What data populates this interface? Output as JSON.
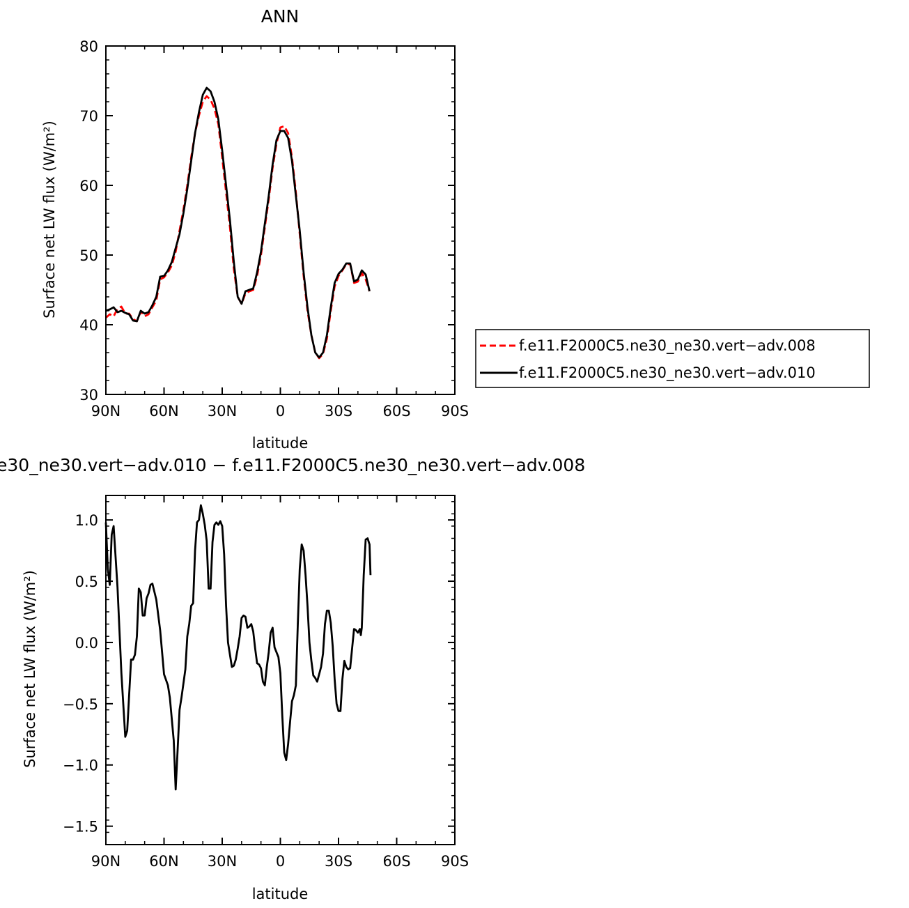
{
  "chart_data": [
    {
      "type": "line",
      "title": "ANN",
      "xlabel": "latitude",
      "ylabel": "Surface net LW flux (W/m²)",
      "xlim": [
        90,
        -90
      ],
      "ylim": [
        30,
        80
      ],
      "x_ticks": [
        90,
        60,
        30,
        0,
        -30,
        -60,
        -90
      ],
      "x_tick_labels": [
        "90N",
        "60N",
        "30N",
        "0",
        "30S",
        "60S",
        "90S"
      ],
      "y_ticks": [
        30,
        40,
        50,
        60,
        70,
        80
      ],
      "y_tick_labels": [
        "30",
        "40",
        "50",
        "60",
        "70",
        "80"
      ],
      "legend_position": "right",
      "series": [
        {
          "name": "f.e11.F2000C5.ne30_ne30.vert−adv.008",
          "color": "#ff0000",
          "dash": "dashed",
          "points": [
            [
              90,
              41.0
            ],
            [
              88,
              41.5
            ],
            [
              86,
              41.2
            ],
            [
              84,
              42.3
            ],
            [
              82,
              42.6
            ],
            [
              80,
              41.6
            ],
            [
              78,
              41.6
            ],
            [
              76,
              40.8
            ],
            [
              74,
              40.5
            ],
            [
              72,
              41.9
            ],
            [
              70,
              41.2
            ],
            [
              68,
              41.5
            ],
            [
              66,
              42.5
            ],
            [
              64,
              43.5
            ],
            [
              62,
              46.5
            ],
            [
              60,
              46.8
            ],
            [
              58,
              47.5
            ],
            [
              56,
              48.5
            ],
            [
              54,
              50.5
            ],
            [
              52,
              53.5
            ],
            [
              50,
              56.5
            ],
            [
              48,
              60.0
            ],
            [
              46,
              64.0
            ],
            [
              44,
              67.5
            ],
            [
              42,
              70.0
            ],
            [
              40,
              72.0
            ],
            [
              38,
              72.8
            ],
            [
              36,
              72.3
            ],
            [
              34,
              71.0
            ],
            [
              32,
              68.8
            ],
            [
              30,
              64.0
            ],
            [
              28,
              59.0
            ],
            [
              26,
              54.0
            ],
            [
              24,
              48.0
            ],
            [
              22,
              44.0
            ],
            [
              20,
              43.0
            ],
            [
              18,
              44.5
            ],
            [
              16,
              44.8
            ],
            [
              14,
              45.0
            ],
            [
              12,
              47.0
            ],
            [
              10,
              50.0
            ],
            [
              8,
              54.0
            ],
            [
              6,
              58.0
            ],
            [
              4,
              62.5
            ],
            [
              2,
              66.0
            ],
            [
              0,
              68.3
            ],
            [
              -2,
              68.5
            ],
            [
              -4,
              67.5
            ],
            [
              -6,
              64.0
            ],
            [
              -8,
              59.0
            ],
            [
              -10,
              53.0
            ],
            [
              -12,
              47.0
            ],
            [
              -14,
              42.0
            ],
            [
              -16,
              38.5
            ],
            [
              -18,
              36.0
            ],
            [
              -20,
              35.2
            ],
            [
              -22,
              35.8
            ],
            [
              -24,
              38.0
            ],
            [
              -26,
              42.0
            ],
            [
              -28,
              45.5
            ],
            [
              -30,
              47.0
            ],
            [
              -32,
              47.8
            ],
            [
              -34,
              48.7
            ],
            [
              -36,
              48.7
            ],
            [
              -38,
              46.0
            ],
            [
              -40,
              46.2
            ],
            [
              -42,
              47.4
            ],
            [
              -44,
              46.5
            ],
            [
              -46,
              44.8
            ]
          ]
        },
        {
          "name": "f.e11.F2000C5.ne30_ne30.vert−adv.010",
          "color": "#000000",
          "dash": "solid",
          "points": [
            [
              90,
              42.0
            ],
            [
              88,
              42.2
            ],
            [
              86,
              42.5
            ],
            [
              84,
              41.8
            ],
            [
              82,
              42.0
            ],
            [
              80,
              41.7
            ],
            [
              78,
              41.5
            ],
            [
              76,
              40.6
            ],
            [
              74,
              40.5
            ],
            [
              72,
              42.0
            ],
            [
              70,
              41.6
            ],
            [
              68,
              41.8
            ],
            [
              66,
              42.8
            ],
            [
              64,
              44.0
            ],
            [
              62,
              46.9
            ],
            [
              60,
              47.0
            ],
            [
              58,
              47.8
            ],
            [
              56,
              49.0
            ],
            [
              54,
              51.0
            ],
            [
              52,
              53.0
            ],
            [
              50,
              56.0
            ],
            [
              48,
              59.5
            ],
            [
              46,
              63.5
            ],
            [
              44,
              67.5
            ],
            [
              42,
              70.5
            ],
            [
              40,
              73.0
            ],
            [
              38,
              74.0
            ],
            [
              36,
              73.5
            ],
            [
              34,
              72.0
            ],
            [
              32,
              69.5
            ],
            [
              30,
              65.0
            ],
            [
              28,
              60.0
            ],
            [
              26,
              55.0
            ],
            [
              24,
              49.0
            ],
            [
              22,
              44.0
            ],
            [
              20,
              43.0
            ],
            [
              18,
              44.8
            ],
            [
              16,
              45.0
            ],
            [
              14,
              45.2
            ],
            [
              12,
              47.5
            ],
            [
              10,
              50.5
            ],
            [
              8,
              54.5
            ],
            [
              6,
              58.5
            ],
            [
              4,
              63.0
            ],
            [
              2,
              66.5
            ],
            [
              0,
              67.8
            ],
            [
              -2,
              67.8
            ],
            [
              -4,
              66.8
            ],
            [
              -6,
              63.5
            ],
            [
              -8,
              58.5
            ],
            [
              -10,
              53.5
            ],
            [
              -12,
              47.5
            ],
            [
              -14,
              42.5
            ],
            [
              -16,
              38.5
            ],
            [
              -18,
              36.0
            ],
            [
              -20,
              35.3
            ],
            [
              -22,
              36.0
            ],
            [
              -24,
              38.5
            ],
            [
              -26,
              42.5
            ],
            [
              -28,
              46.0
            ],
            [
              -30,
              47.3
            ],
            [
              -32,
              47.9
            ],
            [
              -34,
              48.8
            ],
            [
              -36,
              48.8
            ],
            [
              -38,
              46.2
            ],
            [
              -40,
              46.5
            ],
            [
              -42,
              47.8
            ],
            [
              -44,
              47.2
            ],
            [
              -46,
              44.8
            ]
          ]
        }
      ]
    },
    {
      "type": "line",
      "title": "e30_ne30.vert−adv.010 − f.e11.F2000C5.ne30_ne30.vert−adv.008",
      "xlabel": "latitude",
      "ylabel": "Surface net LW flux (W/m²)",
      "xlim": [
        90,
        -90
      ],
      "ylim": [
        -1.65,
        1.2
      ],
      "x_ticks": [
        90,
        60,
        30,
        0,
        -30,
        -60,
        -90
      ],
      "x_tick_labels": [
        "90N",
        "60N",
        "30N",
        "0",
        "30S",
        "60S",
        "90S"
      ],
      "y_ticks": [
        1.0,
        0.5,
        0.0,
        -0.5,
        -1.0,
        -1.5
      ],
      "y_tick_labels": [
        "1.0",
        "0.5",
        "0.0",
        "−0.5",
        "−1.0",
        "−1.5"
      ],
      "series": [
        {
          "color": "#000000",
          "dash": "solid",
          "points": [
            [
              90,
              0.98
            ],
            [
              89,
              0.6
            ],
            [
              88,
              0.47
            ],
            [
              87,
              0.88
            ],
            [
              86,
              0.95
            ],
            [
              84,
              0.45
            ],
            [
              82,
              -0.25
            ],
            [
              80,
              -0.77
            ],
            [
              79,
              -0.72
            ],
            [
              77,
              -0.14
            ],
            [
              76,
              -0.14
            ],
            [
              75,
              -0.1
            ],
            [
              74,
              0.05
            ],
            [
              73,
              0.44
            ],
            [
              72,
              0.41
            ],
            [
              71,
              0.22
            ],
            [
              70,
              0.22
            ],
            [
              69,
              0.36
            ],
            [
              68,
              0.4
            ],
            [
              67,
              0.47
            ],
            [
              66,
              0.48
            ],
            [
              64,
              0.35
            ],
            [
              62,
              0.1
            ],
            [
              60,
              -0.26
            ],
            [
              58,
              -0.35
            ],
            [
              57,
              -0.45
            ],
            [
              55,
              -0.8
            ],
            [
              54,
              -1.2
            ],
            [
              53,
              -0.88
            ],
            [
              52,
              -0.55
            ],
            [
              51,
              -0.45
            ],
            [
              49,
              -0.22
            ],
            [
              48,
              0.05
            ],
            [
              47,
              0.15
            ],
            [
              46,
              0.3
            ],
            [
              45,
              0.32
            ],
            [
              44,
              0.75
            ],
            [
              43,
              0.98
            ],
            [
              42,
              1.0
            ],
            [
              41,
              1.12
            ],
            [
              40,
              1.05
            ],
            [
              39,
              0.96
            ],
            [
              38,
              0.83
            ],
            [
              37,
              0.44
            ],
            [
              36,
              0.44
            ],
            [
              35,
              0.82
            ],
            [
              34,
              0.96
            ],
            [
              33,
              0.98
            ],
            [
              32,
              0.96
            ],
            [
              31,
              0.99
            ],
            [
              30,
              0.95
            ],
            [
              29,
              0.72
            ],
            [
              28,
              0.3
            ],
            [
              27,
              0.0
            ],
            [
              26,
              -0.1
            ],
            [
              25,
              -0.2
            ],
            [
              24,
              -0.19
            ],
            [
              23,
              -0.14
            ],
            [
              22,
              -0.05
            ],
            [
              21,
              0.05
            ],
            [
              20,
              0.2
            ],
            [
              19,
              0.22
            ],
            [
              18,
              0.21
            ],
            [
              17,
              0.12
            ],
            [
              16,
              0.13
            ],
            [
              15,
              0.15
            ],
            [
              14,
              0.09
            ],
            [
              13,
              -0.05
            ],
            [
              12,
              -0.17
            ],
            [
              11,
              -0.18
            ],
            [
              10,
              -0.21
            ],
            [
              9,
              -0.32
            ],
            [
              8,
              -0.35
            ],
            [
              7,
              -0.2
            ],
            [
              6,
              -0.08
            ],
            [
              5,
              0.08
            ],
            [
              4,
              0.12
            ],
            [
              3,
              -0.04
            ],
            [
              2,
              -0.08
            ],
            [
              1,
              -0.12
            ],
            [
              0,
              -0.25
            ],
            [
              -1,
              -0.6
            ],
            [
              -2,
              -0.9
            ],
            [
              -3,
              -0.96
            ],
            [
              -4,
              -0.83
            ],
            [
              -5,
              -0.65
            ],
            [
              -6,
              -0.48
            ],
            [
              -7,
              -0.43
            ],
            [
              -8,
              -0.35
            ],
            [
              -9,
              0.15
            ],
            [
              -10,
              0.6
            ],
            [
              -11,
              0.8
            ],
            [
              -12,
              0.75
            ],
            [
              -13,
              0.55
            ],
            [
              -14,
              0.3
            ],
            [
              -15,
              0.0
            ],
            [
              -16,
              -0.15
            ],
            [
              -17,
              -0.27
            ],
            [
              -18,
              -0.29
            ],
            [
              -19,
              -0.32
            ],
            [
              -20,
              -0.26
            ],
            [
              -21,
              -0.2
            ],
            [
              -22,
              -0.09
            ],
            [
              -23,
              0.15
            ],
            [
              -24,
              0.26
            ],
            [
              -25,
              0.26
            ],
            [
              -26,
              0.16
            ],
            [
              -27,
              -0.03
            ],
            [
              -28,
              -0.3
            ],
            [
              -29,
              -0.5
            ],
            [
              -30,
              -0.56
            ],
            [
              -31,
              -0.56
            ],
            [
              -32,
              -0.3
            ],
            [
              -33,
              -0.15
            ],
            [
              -34,
              -0.2
            ],
            [
              -35,
              -0.22
            ],
            [
              -36,
              -0.21
            ],
            [
              -37,
              -0.05
            ],
            [
              -38,
              0.11
            ],
            [
              -39,
              0.1
            ],
            [
              -40,
              0.08
            ],
            [
              -41,
              0.11
            ],
            [
              -41.5,
              0.06
            ],
            [
              -42,
              0.12
            ],
            [
              -43,
              0.55
            ],
            [
              -44,
              0.84
            ],
            [
              -45,
              0.85
            ],
            [
              -46,
              0.8
            ],
            [
              -46.5,
              0.55
            ]
          ]
        }
      ]
    }
  ]
}
